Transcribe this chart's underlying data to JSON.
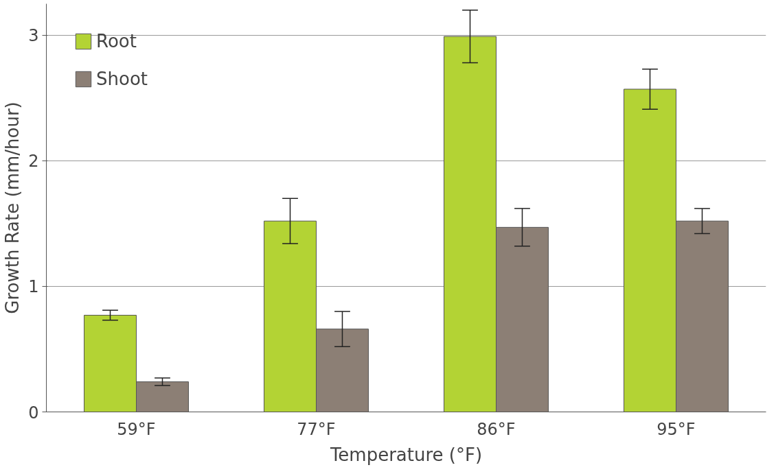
{
  "chart_data": {
    "type": "bar",
    "xlabel": "Temperature (°F)",
    "ylabel": "Growth Rate (mm/hour)",
    "categories": [
      "59°F",
      "77°F",
      "86°F",
      "95°F"
    ],
    "series": [
      {
        "name": "Root",
        "color": "#b3d334",
        "values": [
          0.77,
          1.52,
          2.99,
          2.57
        ],
        "errors": [
          0.04,
          0.18,
          0.21,
          0.16
        ]
      },
      {
        "name": "Shoot",
        "color": "#8c7f75",
        "values": [
          0.24,
          0.66,
          1.47,
          1.52
        ],
        "errors": [
          0.03,
          0.14,
          0.15,
          0.1
        ]
      }
    ],
    "ylim": [
      0,
      3.25
    ],
    "yticks": [
      0,
      1,
      2,
      3
    ],
    "grid": "y",
    "legend": "top left"
  }
}
